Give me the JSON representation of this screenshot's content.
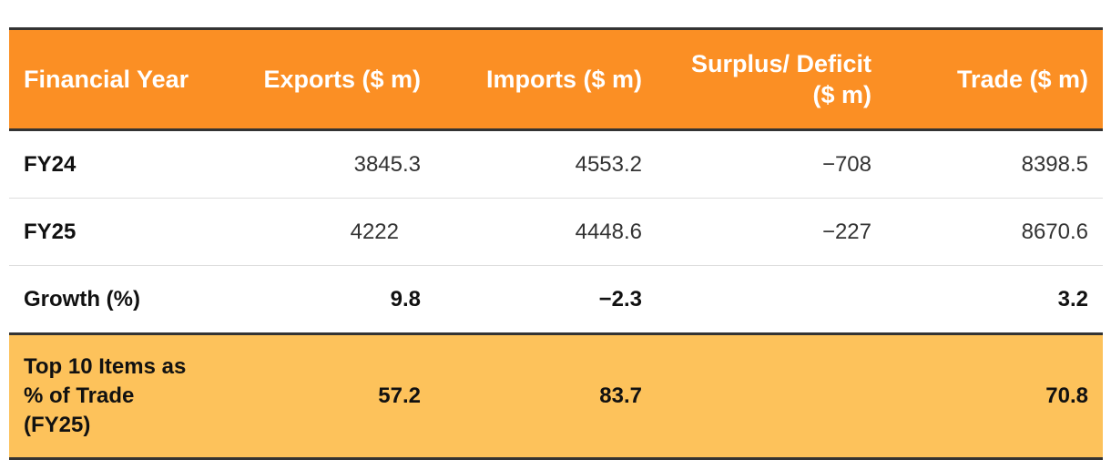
{
  "colors": {
    "header_bg": "#fb8f24",
    "highlight_bg": "#fdc25b",
    "rule": "#333333"
  },
  "table": {
    "headers": [
      "Financial Year",
      "Exports ($ m)",
      "Imports ($ m)",
      "Surplus/ Deficit ($ m)",
      "Trade ($ m)"
    ],
    "rows": [
      {
        "label": "FY24",
        "exports": "3845.3",
        "imports": "4553.2",
        "balance": "−708",
        "trade": "8398.5"
      },
      {
        "label": "FY25",
        "exports": "4222",
        "imports": "4448.6",
        "balance": "−227",
        "trade": "8670.6"
      },
      {
        "label": "Growth (%)",
        "exports": "9.8",
        "imports": "−2.3",
        "balance": "",
        "trade": "3.2"
      },
      {
        "label": "Top 10 Items as % of Trade (FY25)",
        "exports": "57.2",
        "imports": "83.7",
        "balance": "",
        "trade": "70.8"
      }
    ]
  }
}
